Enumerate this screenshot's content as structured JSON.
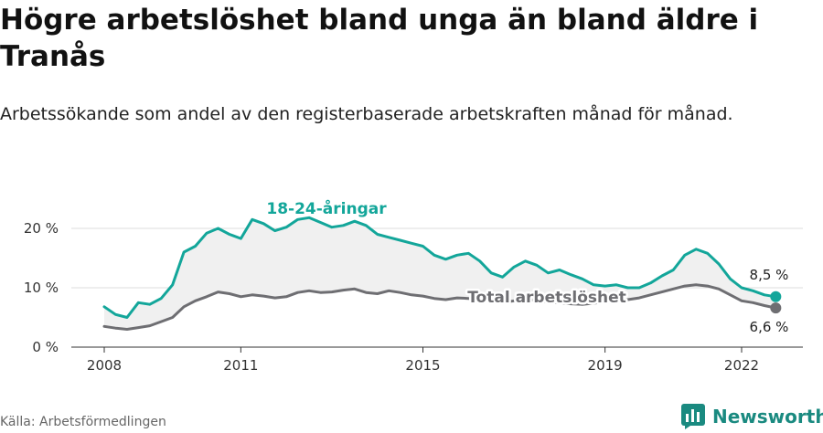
{
  "title": "Högre arbetslöshet bland unga än bland äldre i Tranås",
  "subtitle": "Arbetssökande som andel av den registerbaserade arbetskraften månad för månad.",
  "source": "Källa: Arbetsförmedlingen",
  "brand": {
    "name": "Newsworthy",
    "logo_icon": "bar-chart-logo-icon"
  },
  "colors": {
    "youth": "#13a69a",
    "total": "#6e6e72",
    "fill": "#f0f0f0",
    "grid": "#dcdcdc",
    "brand": "#1a8a80"
  },
  "chart_data": {
    "type": "line",
    "x_unit": "year",
    "ylim": [
      0,
      22
    ],
    "yticks": [
      0,
      10,
      20
    ],
    "ytick_labels": [
      "0 %",
      "10 %",
      "20 %"
    ],
    "xticks": [
      2008,
      2011,
      2015,
      2019,
      2022
    ],
    "xtick_labels": [
      "2008",
      "2011",
      "2015",
      "2019",
      "2022"
    ],
    "grid": true,
    "series": [
      {
        "name": "18-24-åringar",
        "end_label": "8,5 %",
        "points": [
          [
            2008.0,
            6.8
          ],
          [
            2008.25,
            5.5
          ],
          [
            2008.5,
            5.0
          ],
          [
            2008.75,
            7.5
          ],
          [
            2009.0,
            7.2
          ],
          [
            2009.25,
            8.2
          ],
          [
            2009.5,
            10.5
          ],
          [
            2009.75,
            16.0
          ],
          [
            2010.0,
            17.0
          ],
          [
            2010.25,
            19.2
          ],
          [
            2010.5,
            20.0
          ],
          [
            2010.75,
            19.0
          ],
          [
            2011.0,
            18.3
          ],
          [
            2011.25,
            21.5
          ],
          [
            2011.5,
            20.8
          ],
          [
            2011.75,
            19.6
          ],
          [
            2012.0,
            20.2
          ],
          [
            2012.25,
            21.5
          ],
          [
            2012.5,
            21.8
          ],
          [
            2012.75,
            21.0
          ],
          [
            2013.0,
            20.2
          ],
          [
            2013.25,
            20.5
          ],
          [
            2013.5,
            21.2
          ],
          [
            2013.75,
            20.5
          ],
          [
            2014.0,
            19.0
          ],
          [
            2014.25,
            18.5
          ],
          [
            2014.5,
            18.0
          ],
          [
            2014.75,
            17.5
          ],
          [
            2015.0,
            17.0
          ],
          [
            2015.25,
            15.5
          ],
          [
            2015.5,
            14.8
          ],
          [
            2015.75,
            15.5
          ],
          [
            2016.0,
            15.8
          ],
          [
            2016.25,
            14.5
          ],
          [
            2016.5,
            12.5
          ],
          [
            2016.75,
            11.8
          ],
          [
            2017.0,
            13.5
          ],
          [
            2017.25,
            14.5
          ],
          [
            2017.5,
            13.8
          ],
          [
            2017.75,
            12.5
          ],
          [
            2018.0,
            13.0
          ],
          [
            2018.25,
            12.2
          ],
          [
            2018.5,
            11.5
          ],
          [
            2018.75,
            10.5
          ],
          [
            2019.0,
            10.3
          ],
          [
            2019.25,
            10.5
          ],
          [
            2019.5,
            10.0
          ],
          [
            2019.75,
            10.0
          ],
          [
            2020.0,
            10.8
          ],
          [
            2020.25,
            12.0
          ],
          [
            2020.5,
            13.0
          ],
          [
            2020.75,
            15.5
          ],
          [
            2021.0,
            16.5
          ],
          [
            2021.25,
            15.8
          ],
          [
            2021.5,
            14.0
          ],
          [
            2021.75,
            11.5
          ],
          [
            2022.0,
            10.0
          ],
          [
            2022.25,
            9.5
          ],
          [
            2022.5,
            8.8
          ],
          [
            2022.75,
            8.5
          ]
        ]
      },
      {
        "name": "Total arbetslöshet",
        "end_label": "6,6 %",
        "points": [
          [
            2008.0,
            3.5
          ],
          [
            2008.25,
            3.2
          ],
          [
            2008.5,
            3.0
          ],
          [
            2008.75,
            3.3
          ],
          [
            2009.0,
            3.6
          ],
          [
            2009.25,
            4.3
          ],
          [
            2009.5,
            5.0
          ],
          [
            2009.75,
            6.8
          ],
          [
            2010.0,
            7.8
          ],
          [
            2010.25,
            8.5
          ],
          [
            2010.5,
            9.3
          ],
          [
            2010.75,
            9.0
          ],
          [
            2011.0,
            8.5
          ],
          [
            2011.25,
            8.8
          ],
          [
            2011.5,
            8.6
          ],
          [
            2011.75,
            8.3
          ],
          [
            2012.0,
            8.5
          ],
          [
            2012.25,
            9.2
          ],
          [
            2012.5,
            9.5
          ],
          [
            2012.75,
            9.2
          ],
          [
            2013.0,
            9.3
          ],
          [
            2013.25,
            9.6
          ],
          [
            2013.5,
            9.8
          ],
          [
            2013.75,
            9.2
          ],
          [
            2014.0,
            9.0
          ],
          [
            2014.25,
            9.5
          ],
          [
            2014.5,
            9.2
          ],
          [
            2014.75,
            8.8
          ],
          [
            2015.0,
            8.6
          ],
          [
            2015.25,
            8.2
          ],
          [
            2015.5,
            8.0
          ],
          [
            2015.75,
            8.3
          ],
          [
            2016.0,
            8.2
          ],
          [
            2016.25,
            8.0
          ],
          [
            2016.5,
            7.8
          ],
          [
            2016.75,
            7.5
          ],
          [
            2017.0,
            7.8
          ],
          [
            2017.25,
            8.0
          ],
          [
            2017.5,
            7.9
          ],
          [
            2017.75,
            7.6
          ],
          [
            2018.0,
            7.5
          ],
          [
            2018.25,
            7.3
          ],
          [
            2018.5,
            7.2
          ],
          [
            2018.75,
            7.4
          ],
          [
            2019.0,
            7.6
          ],
          [
            2019.25,
            7.8
          ],
          [
            2019.5,
            8.0
          ],
          [
            2019.75,
            8.3
          ],
          [
            2020.0,
            8.8
          ],
          [
            2020.25,
            9.3
          ],
          [
            2020.5,
            9.8
          ],
          [
            2020.75,
            10.3
          ],
          [
            2021.0,
            10.5
          ],
          [
            2021.25,
            10.3
          ],
          [
            2021.5,
            9.8
          ],
          [
            2021.75,
            8.8
          ],
          [
            2022.0,
            7.8
          ],
          [
            2022.25,
            7.5
          ],
          [
            2022.5,
            7.0
          ],
          [
            2022.75,
            6.6
          ]
        ]
      }
    ]
  }
}
